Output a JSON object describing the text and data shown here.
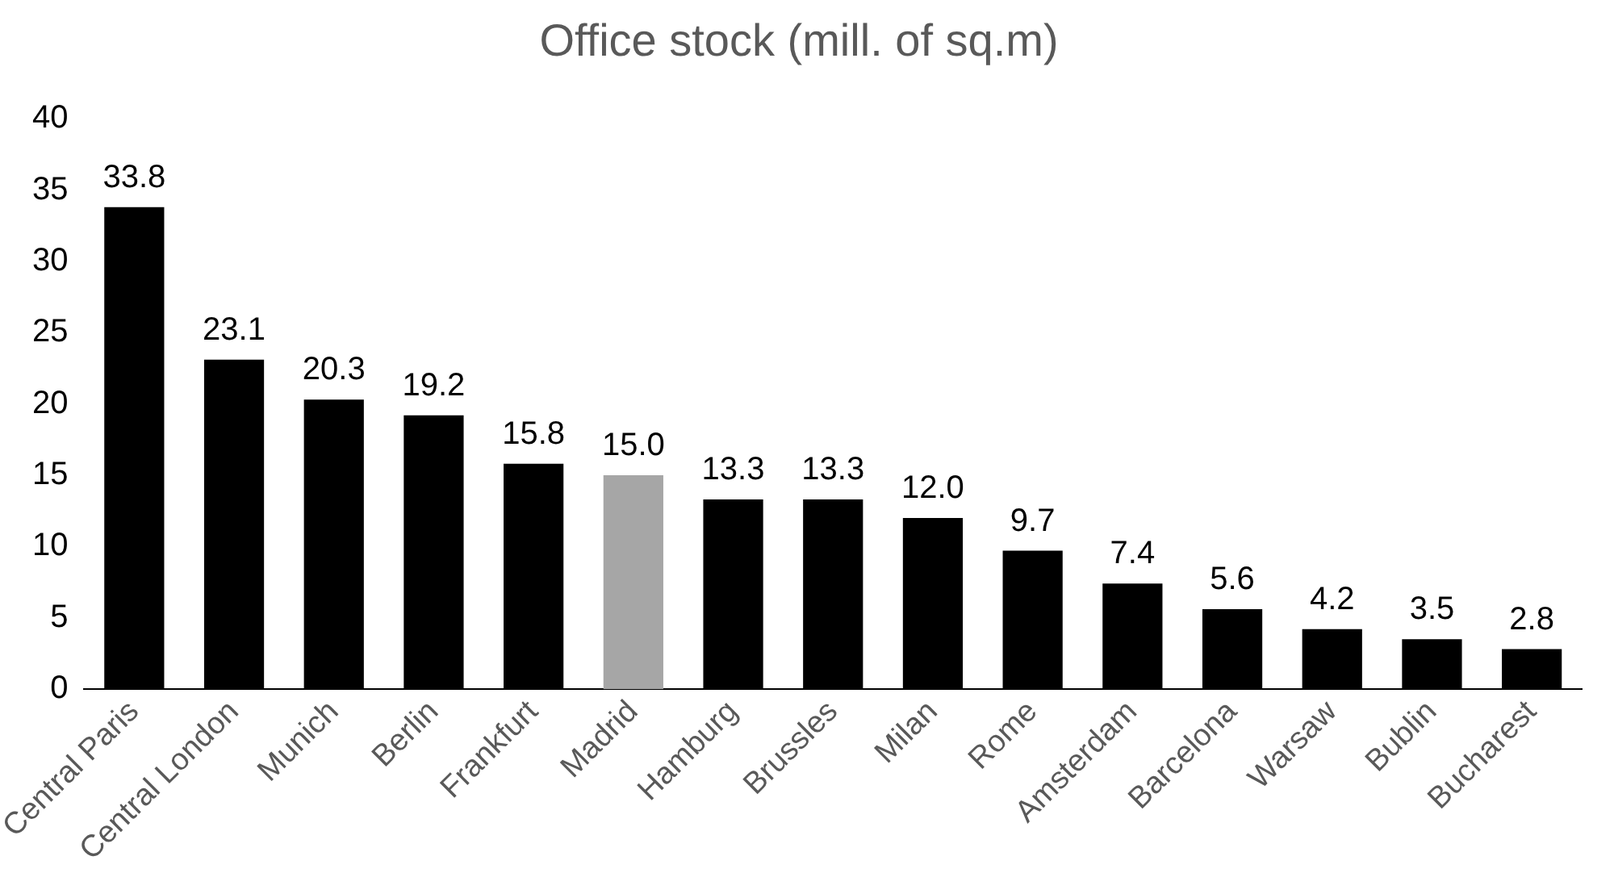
{
  "chart_data": {
    "type": "bar",
    "title": "Office stock (mill. of sq.m)",
    "categories": [
      "Central Paris",
      "Central London",
      "Munich",
      "Berlin",
      "Frankfurt",
      "Madrid",
      "Hamburg",
      "Brussles",
      "Milan",
      "Rome",
      "Amsterdam",
      "Barcelona",
      "Warsaw",
      "Bublin",
      "Bucharest"
    ],
    "values": [
      33.8,
      23.1,
      20.3,
      19.2,
      15.8,
      15.0,
      13.3,
      13.3,
      12.0,
      9.7,
      7.4,
      5.6,
      4.2,
      3.5,
      2.8
    ],
    "colors": [
      "#000000",
      "#000000",
      "#000000",
      "#000000",
      "#000000",
      "#a6a6a6",
      "#000000",
      "#000000",
      "#000000",
      "#000000",
      "#000000",
      "#000000",
      "#000000",
      "#000000",
      "#000000"
    ],
    "value_labels": [
      "33.8",
      "23.1",
      "20.3",
      "19.2",
      "15.8",
      "15.0",
      "13.3",
      "13.3",
      "12.0",
      "9.7",
      "7.4",
      "5.6",
      "4.2",
      "3.5",
      "2.8"
    ],
    "ylim": [
      0,
      40
    ],
    "yticks": [
      0,
      5,
      10,
      15,
      20,
      25,
      30,
      35,
      40
    ],
    "grid": false,
    "legend": false
  }
}
